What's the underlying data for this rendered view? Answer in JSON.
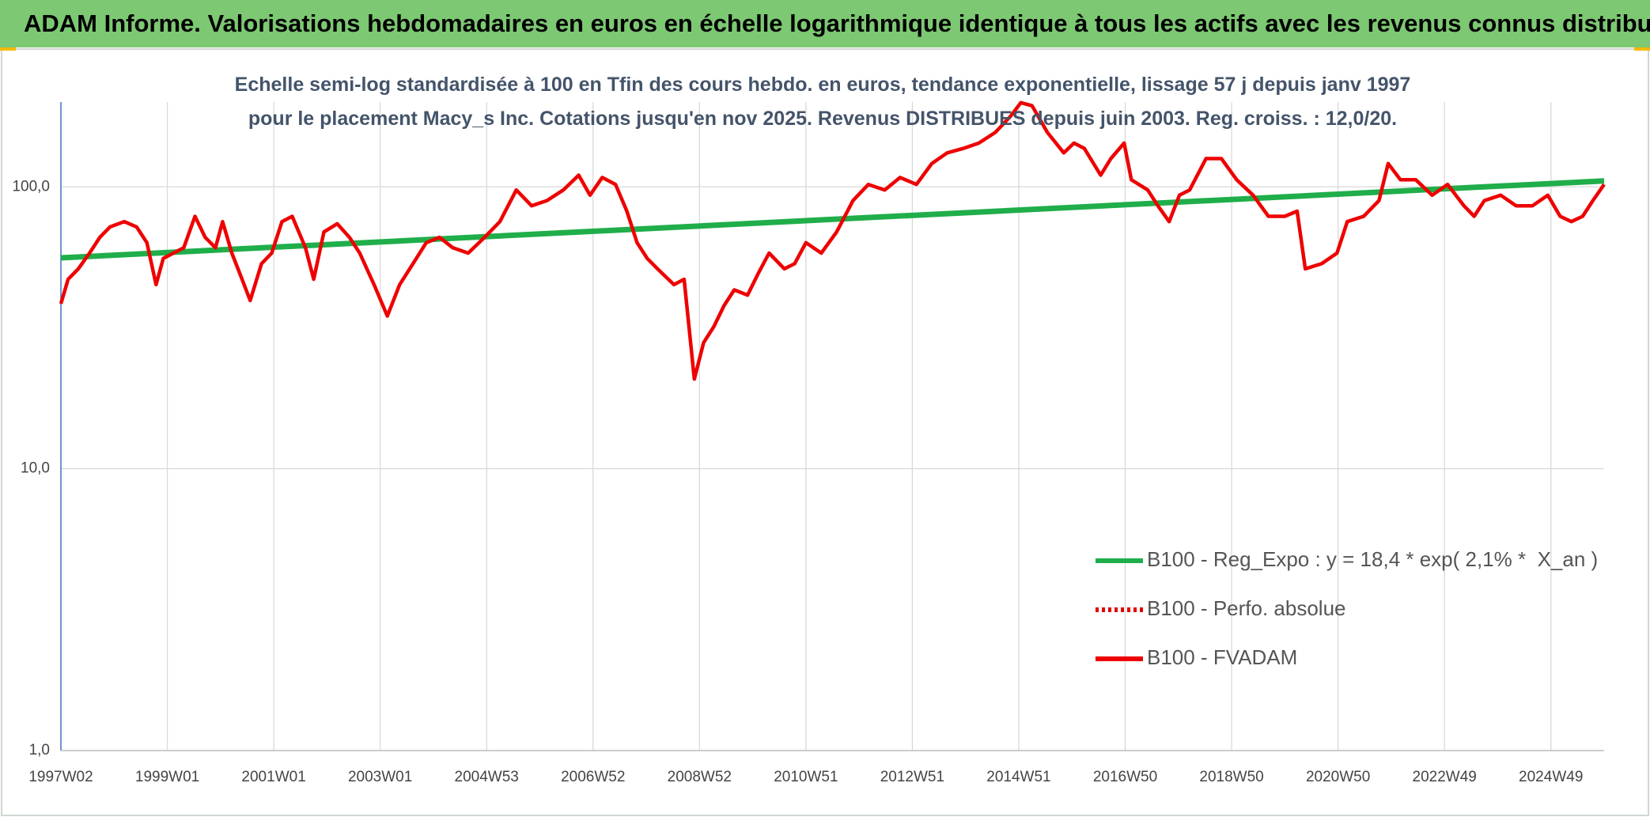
{
  "chart_data": {
    "type": "line",
    "title": "ADAM Informe. Valorisations hebdomadaires en euros en échelle logarithmique identique à tous les actifs avec les revenus connus distribués",
    "subtitle": "Echelle semi-log standardisée à 100 en Tfin des cours hebdo. en euros, tendance exponentielle, lissage 57 j depuis janv 1997 pour le placement Macy_s Inc. Cotations jusqu'en nov 2025. Revenus DISTRIBUES depuis juin 2003. Reg. croiss. : 12,0/20.",
    "log_scale": true,
    "grid": true,
    "xlim": [
      0,
      1508
    ],
    "ylim": [
      1,
      200
    ],
    "xticks": [
      {
        "value": 0,
        "label": "1997W02"
      },
      {
        "value": 104,
        "label": "1999W01"
      },
      {
        "value": 208,
        "label": "2001W01"
      },
      {
        "value": 312,
        "label": "2003W01"
      },
      {
        "value": 416,
        "label": "2004W53"
      },
      {
        "value": 520,
        "label": "2006W52"
      },
      {
        "value": 624,
        "label": "2008W52"
      },
      {
        "value": 728,
        "label": "2010W51"
      },
      {
        "value": 832,
        "label": "2012W51"
      },
      {
        "value": 936,
        "label": "2014W51"
      },
      {
        "value": 1040,
        "label": "2016W50"
      },
      {
        "value": 1144,
        "label": "2018W50"
      },
      {
        "value": 1248,
        "label": "2020W50"
      },
      {
        "value": 1352,
        "label": "2022W49"
      },
      {
        "value": 1456,
        "label": "2024W49"
      }
    ],
    "yticks": [
      {
        "value": 1,
        "label": "1,0"
      },
      {
        "value": 10,
        "label": "10,0"
      },
      {
        "value": 100,
        "label": "100,0"
      }
    ],
    "series": [
      {
        "name": "B100 - Reg_Expo : y = 18,4 * exp( 2,1% *  X_an )",
        "color": "#1fae4a",
        "style": "solid",
        "x": [
          0,
          1508
        ],
        "values": [
          56,
          105
        ]
      },
      {
        "name": "B100 - Perfo. absolue",
        "color": "#e00000",
        "style": "dotted",
        "x": [],
        "values": []
      },
      {
        "name": "B100 - FVADAM",
        "color": "#ee0000",
        "style": "solid",
        "x": [
          0,
          7,
          17,
          28,
          38,
          48,
          62,
          74,
          84,
          93,
          100,
          110,
          120,
          131,
          141,
          151,
          158,
          167,
          177,
          185,
          196,
          206,
          216,
          226,
          239,
          247,
          257,
          270,
          282,
          292,
          306,
          319,
          331,
          344,
          357,
          370,
          383,
          398,
          414,
          429,
          445,
          460,
          475,
          491,
          506,
          517,
          529,
          542,
          553,
          563,
          573,
          583,
          599,
          609,
          619,
          628,
          638,
          648,
          658,
          671,
          681,
          692,
          707,
          717,
          728,
          743,
          758,
          774,
          789,
          805,
          820,
          836,
          851,
          866,
          882,
          897,
          913,
          928,
          938,
          949,
          964,
          980,
          990,
          1000,
          1016,
          1026,
          1039,
          1046,
          1062,
          1072,
          1083,
          1093,
          1103,
          1119,
          1134,
          1149,
          1165,
          1180,
          1196,
          1208,
          1216,
          1232,
          1247,
          1257,
          1273,
          1288,
          1297,
          1309,
          1324,
          1340,
          1355,
          1371,
          1381,
          1391,
          1407,
          1422,
          1438,
          1453,
          1465,
          1476,
          1487,
          1497,
          1508
        ],
        "values": [
          38.5,
          47,
          51.2,
          58.2,
          66.2,
          72.1,
          75.3,
          72.1,
          63.4,
          45,
          55.7,
          58.2,
          60.8,
          78.6,
          66.2,
          60.8,
          75.3,
          58.2,
          47,
          39.5,
          53.4,
          58.2,
          75.3,
          78.6,
          60.8,
          47,
          69.2,
          74,
          66.2,
          58.2,
          45,
          34.8,
          45,
          53.4,
          63.4,
          66.2,
          60.8,
          58.2,
          66.2,
          75.3,
          97.5,
          85.7,
          89.4,
          97.5,
          110,
          93.4,
          108,
          102,
          82,
          63.4,
          55.7,
          51.2,
          45,
          47,
          20.8,
          28,
          31.9,
          37.9,
          43.1,
          41.3,
          49,
          58.2,
          51.2,
          53.4,
          63.4,
          58.2,
          69.2,
          89.4,
          102,
          97.5,
          108,
          102,
          121,
          132,
          137,
          143,
          156,
          178,
          199,
          194,
          156,
          132,
          143,
          137,
          110,
          126,
          143,
          106,
          97.5,
          85.7,
          75.3,
          93.4,
          97.5,
          126,
          126,
          106,
          93.4,
          78.6,
          78.6,
          82,
          51.2,
          53.4,
          58.2,
          75.3,
          78.6,
          89.4,
          121,
          106,
          106,
          93.4,
          102,
          85.7,
          78.6,
          89.4,
          93.4,
          85.7,
          85.7,
          93.4,
          78.6,
          75.3,
          78.6,
          89.4,
          102
        ]
      }
    ]
  }
}
